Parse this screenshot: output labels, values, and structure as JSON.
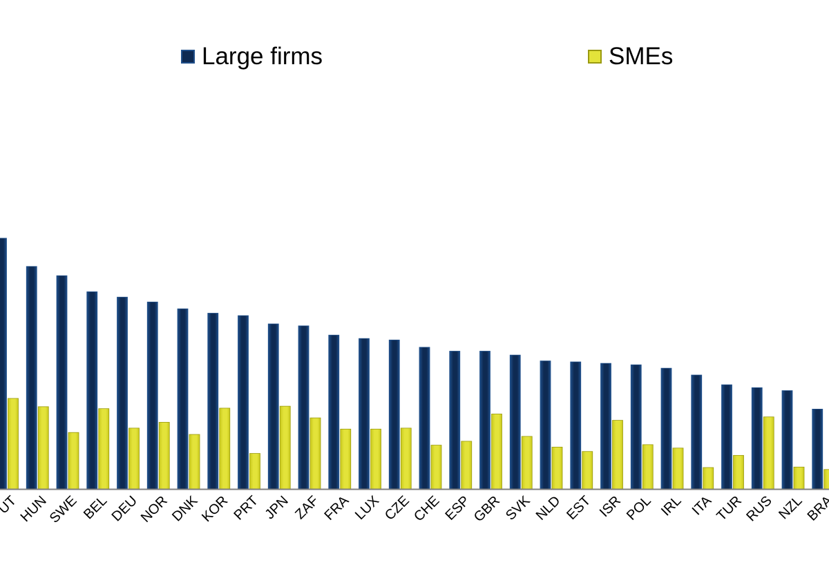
{
  "colors": {
    "large": "#0e2a52",
    "large_edge": "#1f4f8a",
    "sme": "#e3e33a",
    "sme_edge": "#9a9a10",
    "axis": "#7f7f7f",
    "background": "#ffffff"
  },
  "legend": {
    "large_label": "Large firms",
    "sme_label": "SMEs",
    "large_icon": "square-swatch-icon",
    "sme_icon": "square-swatch-icon"
  },
  "chart_data": {
    "type": "bar",
    "title": "",
    "xlabel": "",
    "ylabel": "",
    "ylim": [
      0,
      100
    ],
    "grid": false,
    "legend_position": "top",
    "categories": [
      "AUT",
      "HUN",
      "SWE",
      "BEL",
      "DEU",
      "NOR",
      "DNK",
      "KOR",
      "PRT",
      "JPN",
      "ZAF",
      "FRA",
      "LUX",
      "CZE",
      "CHE",
      "ESP",
      "GBR",
      "SVK",
      "NLD",
      "EST",
      "ISR",
      "POL",
      "IRL",
      "ITA",
      "TUR",
      "RUS",
      "NZL",
      "BRA"
    ],
    "category_labels": [
      "UT",
      "HUN",
      "SWE",
      "BEL",
      "DEU",
      "NOR",
      "DNK",
      "KOR",
      "PRT",
      "JPN",
      "ZAF",
      "FRA",
      "LUX",
      "CZE",
      "CHE",
      "ESP",
      "GBR",
      "SVK",
      "NLD",
      "EST",
      "ISR",
      "POL",
      "IRL",
      "ITA",
      "TUR",
      "RUS",
      "NZL",
      "BRA"
    ],
    "series": [
      {
        "name": "Large firms",
        "values": [
          51.5,
          45.7,
          43.8,
          40.5,
          39.4,
          38.4,
          37.0,
          36.1,
          35.6,
          33.9,
          33.5,
          31.6,
          30.9,
          30.6,
          29.1,
          28.3,
          28.3,
          27.5,
          26.3,
          26.1,
          25.8,
          25.5,
          24.8,
          23.4,
          21.4,
          20.8,
          20.2,
          16.4
        ]
      },
      {
        "name": "SMEs",
        "values": [
          18.6,
          16.9,
          11.6,
          16.5,
          12.5,
          13.7,
          11.2,
          16.6,
          7.3,
          17.0,
          14.6,
          12.3,
          12.3,
          12.5,
          9.0,
          9.8,
          15.4,
          10.8,
          8.6,
          7.7,
          14.1,
          9.1,
          8.4,
          4.4,
          6.9,
          14.8,
          4.5,
          4.0
        ]
      }
    ]
  }
}
